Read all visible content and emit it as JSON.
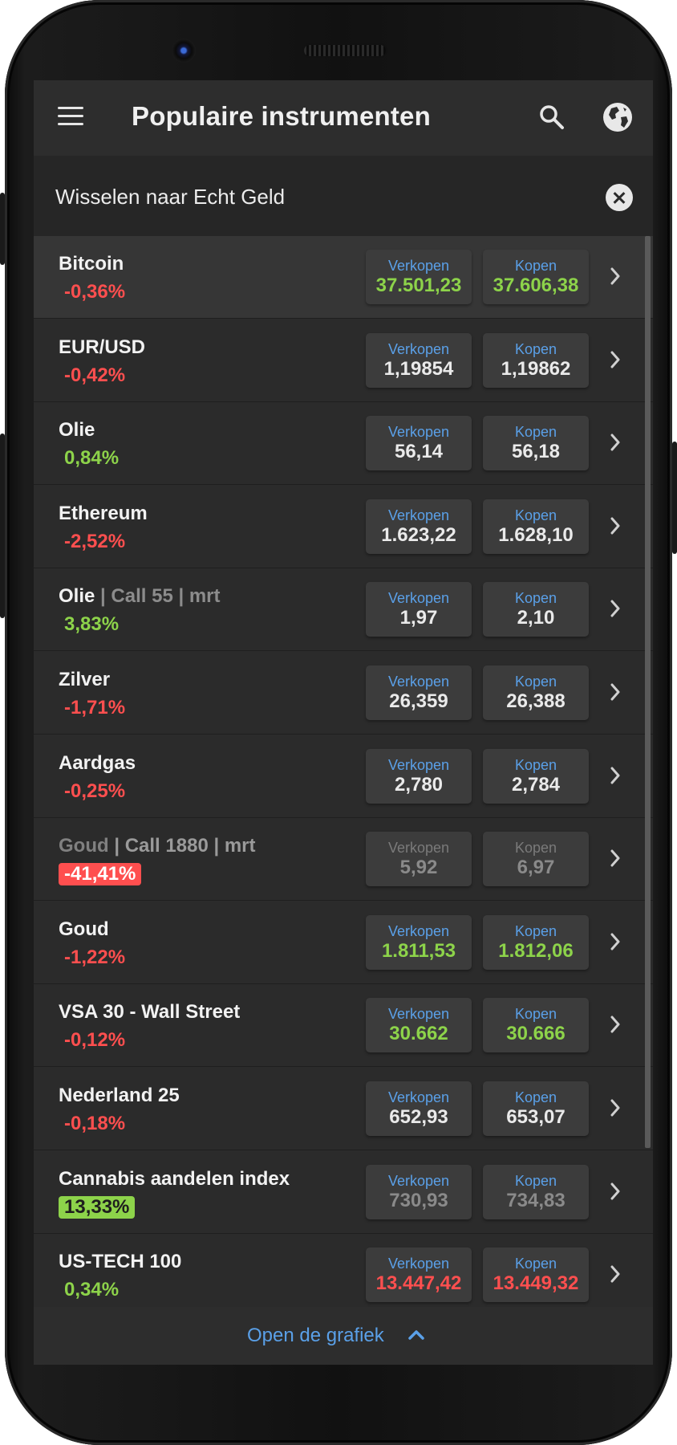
{
  "header": {
    "title": "Populaire instrumenten",
    "menu_icon": "hamburger-menu-icon",
    "search_icon": "search-icon",
    "globe_icon": "globe-icon"
  },
  "banner": {
    "text": "Wisselen naar Echt Geld",
    "close_icon": "close-icon"
  },
  "instruments": [
    {
      "name": "Bitcoin",
      "sub": "",
      "change": "-0,36%",
      "direction": "neg",
      "badge": false,
      "sell_label": "Verkopen",
      "sell": "37.501,23",
      "buy_label": "Kopen",
      "buy": "37.606,38",
      "price_color": "green",
      "selected": true,
      "dim": false
    },
    {
      "name": "EUR/USD",
      "sub": "",
      "change": "-0,42%",
      "direction": "neg",
      "badge": false,
      "sell_label": "Verkopen",
      "sell": "1,19854",
      "buy_label": "Kopen",
      "buy": "1,19862",
      "price_color": "white",
      "selected": false,
      "dim": false
    },
    {
      "name": "Olie",
      "sub": "",
      "change": "0,84%",
      "direction": "pos",
      "badge": false,
      "sell_label": "Verkopen",
      "sell": "56,14",
      "buy_label": "Kopen",
      "buy": "56,18",
      "price_color": "white",
      "selected": false,
      "dim": false
    },
    {
      "name": "Ethereum",
      "sub": "",
      "change": "-2,52%",
      "direction": "neg",
      "badge": false,
      "sell_label": "Verkopen",
      "sell": "1.623,22",
      "buy_label": "Kopen",
      "buy": "1.628,10",
      "price_color": "white",
      "selected": false,
      "dim": false
    },
    {
      "name": "Olie",
      "sub": "| Call 55 | mrt",
      "change": "3,83%",
      "direction": "pos",
      "badge": false,
      "sell_label": "Verkopen",
      "sell": "1,97",
      "buy_label": "Kopen",
      "buy": "2,10",
      "price_color": "white",
      "selected": false,
      "dim": false
    },
    {
      "name": "Zilver",
      "sub": "",
      "change": "-1,71%",
      "direction": "neg",
      "badge": false,
      "sell_label": "Verkopen",
      "sell": "26,359",
      "buy_label": "Kopen",
      "buy": "26,388",
      "price_color": "white",
      "selected": false,
      "dim": false
    },
    {
      "name": "Aardgas",
      "sub": "",
      "change": "-0,25%",
      "direction": "neg",
      "badge": false,
      "sell_label": "Verkopen",
      "sell": "2,780",
      "buy_label": "Kopen",
      "buy": "2,784",
      "price_color": "white",
      "selected": false,
      "dim": false
    },
    {
      "name": "Goud",
      "sub": "| Call 1880 | mrt",
      "change": "-41,41%",
      "direction": "neg",
      "badge": true,
      "sell_label": "Verkopen",
      "sell": "5,92",
      "buy_label": "Kopen",
      "buy": "6,97",
      "price_color": "grey",
      "selected": false,
      "dim": true
    },
    {
      "name": "Goud",
      "sub": "",
      "change": "-1,22%",
      "direction": "neg",
      "badge": false,
      "sell_label": "Verkopen",
      "sell": "1.811,53",
      "buy_label": "Kopen",
      "buy": "1.812,06",
      "price_color": "green",
      "selected": false,
      "dim": false
    },
    {
      "name": "VSA 30 - Wall Street",
      "sub": "",
      "change": "-0,12%",
      "direction": "neg",
      "badge": false,
      "sell_label": "Verkopen",
      "sell": "30.662",
      "buy_label": "Kopen",
      "buy": "30.666",
      "price_color": "green",
      "selected": false,
      "dim": false
    },
    {
      "name": "Nederland 25",
      "sub": "",
      "change": "-0,18%",
      "direction": "neg",
      "badge": false,
      "sell_label": "Verkopen",
      "sell": "652,93",
      "buy_label": "Kopen",
      "buy": "653,07",
      "price_color": "white",
      "selected": false,
      "dim": false
    },
    {
      "name": "Cannabis aandelen index",
      "sub": "",
      "change": "13,33%",
      "direction": "pos",
      "badge": true,
      "sell_label": "Verkopen",
      "sell": "730,93",
      "buy_label": "Kopen",
      "buy": "734,83",
      "price_color": "grey",
      "selected": false,
      "dim": false
    },
    {
      "name": "US-TECH 100",
      "sub": "",
      "change": "0,34%",
      "direction": "pos",
      "badge": false,
      "sell_label": "Verkopen",
      "sell": "13.447,42",
      "buy_label": "Kopen",
      "buy": "13.449,32",
      "price_color": "red",
      "selected": false,
      "dim": false
    }
  ],
  "footer": {
    "label": "Open de grafiek",
    "icon": "chevron-up-icon"
  },
  "colors": {
    "background": "#2b2b2b",
    "positive": "#8dd34a",
    "negative": "#ff4f4f",
    "accent_blue": "#5aa0e8"
  }
}
